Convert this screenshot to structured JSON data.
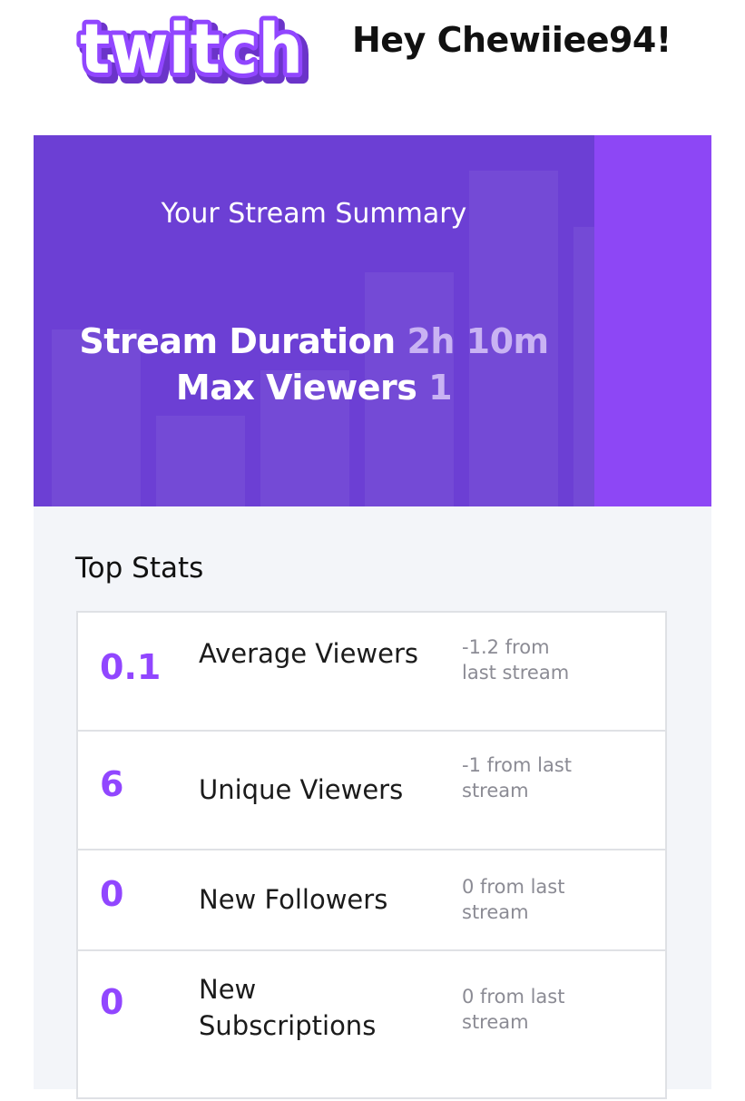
{
  "header": {
    "logo_text": "twitch",
    "greeting": "Hey Chewiiee94!"
  },
  "hero": {
    "heading": "Your Stream Summary",
    "duration_label": "Stream Duration",
    "duration_value": "2h 10m",
    "max_viewers_label": "Max Viewers",
    "max_viewers_value": "1"
  },
  "top_stats": {
    "title": "Top Stats",
    "rows": [
      {
        "value": "0.1",
        "label": "Average Viewers",
        "change": "-1.2 from last stream"
      },
      {
        "value": "6",
        "label": "Unique Viewers",
        "change": "-1 from last stream"
      },
      {
        "value": "0",
        "label": "New Followers",
        "change": "0 from last stream"
      },
      {
        "value": "0",
        "label": "New Subscriptions",
        "change": "0 from last stream"
      }
    ]
  },
  "colors": {
    "brand_purple": "#9146ff",
    "hero_purple": "#6c3fd4",
    "hero_accent": "#8d47f5",
    "value_muted": "#c9b3f3"
  }
}
